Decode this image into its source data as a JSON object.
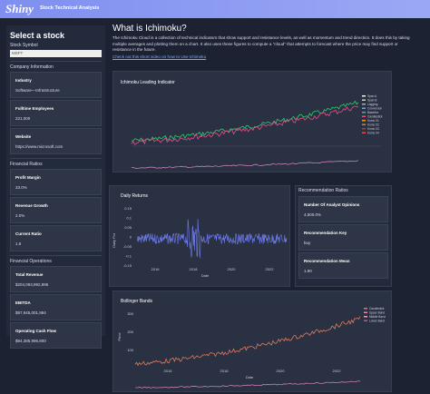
{
  "header": {
    "logo": "Shiny",
    "title": "Stock Technical Analysis"
  },
  "sidebar": {
    "title": "Select a stock",
    "symbol_label": "Stock Symbol",
    "symbol": "MSFT",
    "sections": [
      {
        "title": "Company Information",
        "cards": [
          {
            "label": "Industry",
            "value": "Software—Infrastructure"
          },
          {
            "label": "Fulltime Employees",
            "value": "221,000"
          },
          {
            "label": "Website",
            "value": "https://www.microsoft.com"
          }
        ]
      },
      {
        "title": "Financial Ratios",
        "cards": [
          {
            "label": "Profit Margin",
            "value": "33.0%"
          },
          {
            "label": "Revenue Growth",
            "value": "2.0%"
          },
          {
            "label": "Current Ratio",
            "value": "1.9"
          }
        ]
      },
      {
        "title": "Financial Operations",
        "cards": [
          {
            "label": "Total Revenue",
            "value": "$204,093,992,896"
          },
          {
            "label": "EBITDA",
            "value": "$97,945,001,984"
          },
          {
            "label": "Operating Cash Flow",
            "value": "$84,385,996,800"
          }
        ]
      }
    ]
  },
  "intro": {
    "title": "What is Ichimoku?",
    "text": "The Ichimoku Cloud is a collection of technical indicators that show support and resistance levels, as well as momentum and trend direction. It does this by taking multiple averages and plotting them on a chart. It also uses these figures to compute a \"cloud\" that attempts to forecast where the price may find support or resistance in the future.",
    "link": "Check out this short video on how to Use Ichimoku"
  },
  "ichimoku": {
    "title": "Ichimoku Leading Indicator",
    "legend": [
      "Span A",
      "Span B",
      "Lagging",
      "Conversion",
      "Baseline",
      "Candlestick",
      "Kumo 01",
      "Kumo 02",
      "Kumo 03",
      "Kumo 04"
    ]
  },
  "returns": {
    "title": "Daily Returns",
    "y_label": "Daily Pct",
    "x_label": "Date",
    "yticks": [
      "0.15",
      "0.1",
      "0.05",
      "0",
      "-0.05",
      "-0.1",
      "-0.15"
    ],
    "xticks": [
      "2016",
      "2018",
      "2020",
      "2022"
    ]
  },
  "recommendations": {
    "title": "Recommendation Ratios",
    "cards": [
      {
        "label": "Number Of Analyst Opinions",
        "value": "4,500.0%"
      },
      {
        "label": "Recommendation Key",
        "value": "buy"
      },
      {
        "label": "Recommendation Mean",
        "value": "1.90"
      }
    ]
  },
  "bollinger": {
    "title": "Bollinger Bands",
    "y_label": "Price",
    "x_label": "Date",
    "legend": [
      "Candlestick",
      "Upper Band",
      "Middle Band",
      "Lower Band"
    ],
    "yticks": [
      "300",
      "200",
      "100"
    ],
    "xticks": [
      "2016",
      "2018",
      "2020",
      "2022"
    ]
  }
}
